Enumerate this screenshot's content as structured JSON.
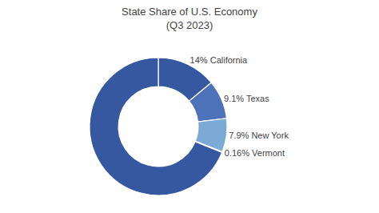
{
  "chart_data": {
    "type": "pie",
    "title": "State Share of U.S. Economy",
    "subtitle": "(Q3 2023)",
    "values": [
      14.0,
      9.1,
      7.9,
      0.16,
      68.84
    ],
    "value_labels": [
      "14% California",
      "9.1% Texas",
      "7.9% New York",
      "0.16% Vermont",
      null
    ],
    "colors": [
      "#3558a0",
      "#4d72ba",
      "#7aaad5",
      "#a8c8e6",
      "#3558a0"
    ],
    "data_labels": true
  }
}
